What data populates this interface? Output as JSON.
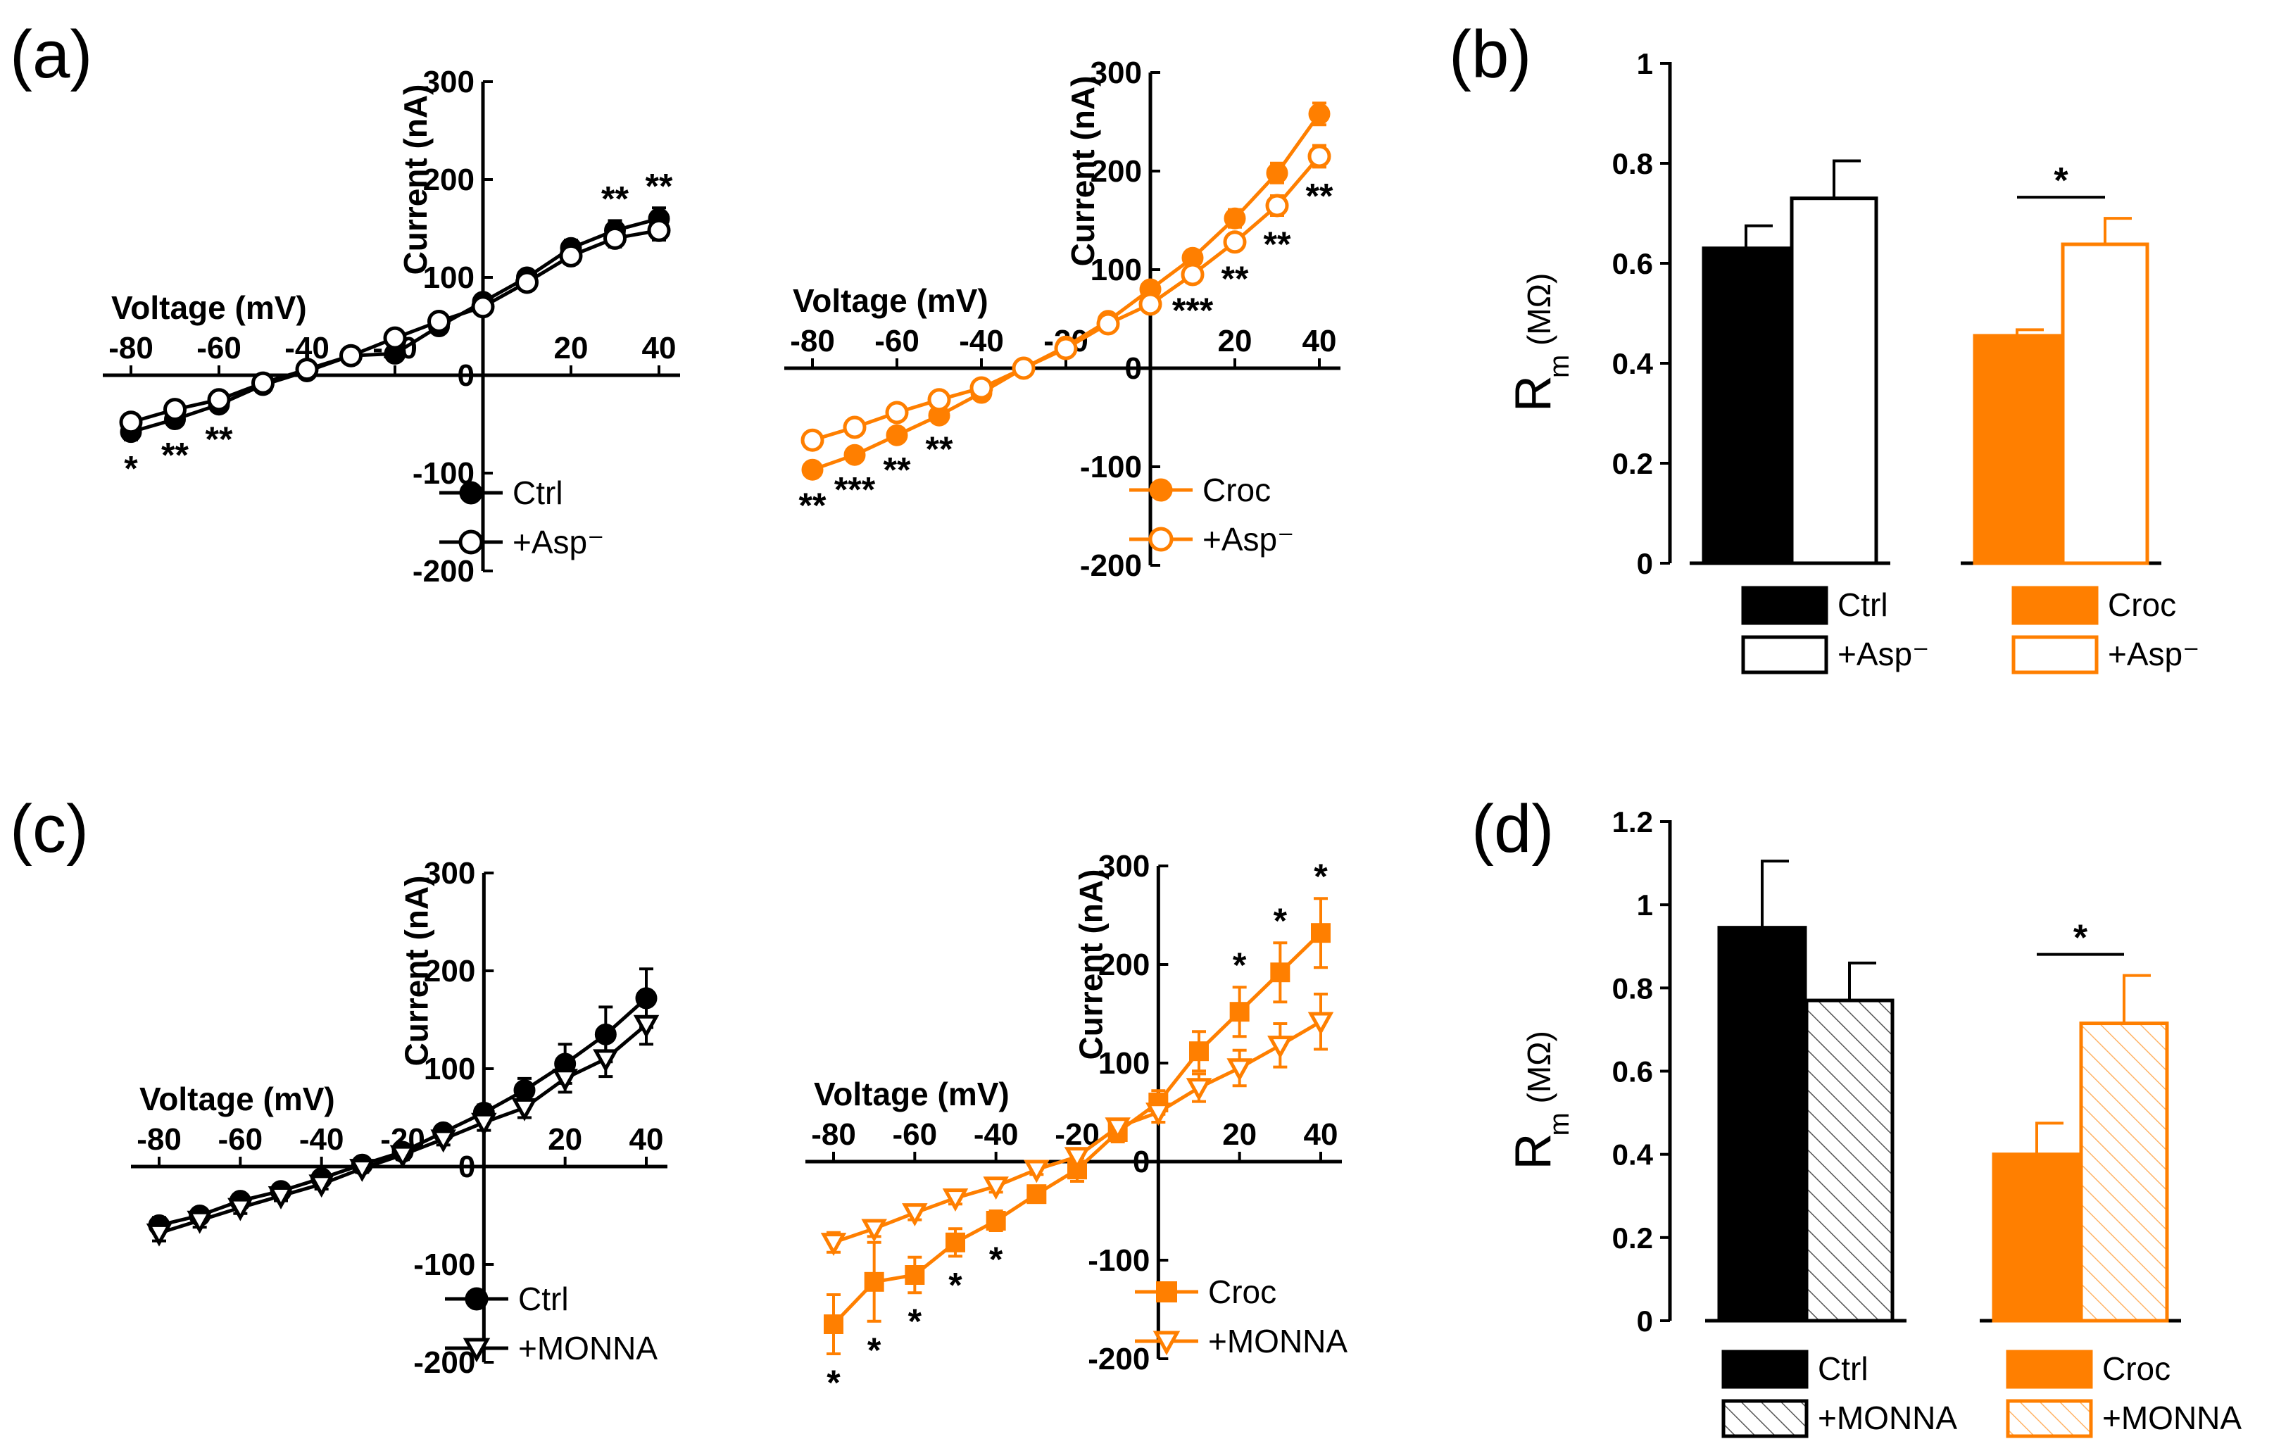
{
  "colors": {
    "black": "#000000",
    "orange": "#ff7f00",
    "white": "#ffffff"
  },
  "panel_labels": {
    "a": "(a)",
    "b": "(b)",
    "c": "(c)",
    "d": "(d)"
  },
  "chart_data": [
    {
      "id": "a1",
      "type": "line",
      "xlabel": "Voltage (mV)",
      "ylabel": "Current (nA)",
      "xlim": [
        -80,
        40
      ],
      "ylim": [
        -200,
        300
      ],
      "xticks": [
        -80,
        -60,
        -40,
        -20,
        20,
        40
      ],
      "yticks": [
        -200,
        -100,
        0,
        100,
        200,
        300
      ],
      "x": [
        -80,
        -70,
        -60,
        -50,
        -40,
        -30,
        -20,
        -10,
        0,
        10,
        20,
        30,
        40
      ],
      "series": [
        {
          "name": "Ctrl",
          "marker": "circle-filled",
          "color": "black",
          "values": [
            -58,
            -45,
            -30,
            -10,
            4,
            20,
            22,
            50,
            75,
            100,
            130,
            148,
            160
          ],
          "errors": [
            8,
            7,
            6,
            5,
            4,
            4,
            4,
            5,
            6,
            7,
            8,
            10,
            11
          ]
        },
        {
          "name": "+Asp⁻",
          "marker": "circle-open",
          "color": "black",
          "values": [
            -48,
            -35,
            -25,
            -8,
            6,
            20,
            38,
            55,
            70,
            95,
            122,
            140,
            148
          ],
          "errors": [
            7,
            6,
            6,
            5,
            4,
            4,
            4,
            5,
            6,
            6,
            8,
            9,
            10
          ]
        }
      ],
      "significance": [
        {
          "x": -80,
          "text": "*",
          "pos": "below"
        },
        {
          "x": -70,
          "text": "**",
          "pos": "below"
        },
        {
          "x": -60,
          "text": "**",
          "pos": "below"
        },
        {
          "x": 30,
          "text": "**",
          "pos": "above"
        },
        {
          "x": 40,
          "text": "**",
          "pos": "above"
        }
      ]
    },
    {
      "id": "a2",
      "type": "line",
      "xlabel": "Voltage (mV)",
      "ylabel": "Current (nA)",
      "xlim": [
        -80,
        40
      ],
      "ylim": [
        -200,
        300
      ],
      "xticks": [
        -80,
        -60,
        -40,
        -20,
        20,
        40
      ],
      "yticks": [
        -200,
        -100,
        0,
        100,
        200,
        300
      ],
      "x": [
        -80,
        -70,
        -60,
        -50,
        -40,
        -30,
        -20,
        -10,
        0,
        10,
        20,
        30,
        40
      ],
      "series": [
        {
          "name": "Croc",
          "marker": "circle-filled",
          "color": "orange",
          "values": [
            -103,
            -88,
            -68,
            -48,
            -25,
            0,
            22,
            48,
            80,
            112,
            152,
            198,
            258
          ],
          "errors": [
            7,
            6,
            6,
            5,
            5,
            4,
            4,
            5,
            6,
            7,
            9,
            10,
            11
          ]
        },
        {
          "name": "+Asp⁻",
          "marker": "circle-open",
          "color": "orange",
          "values": [
            -73,
            -60,
            -45,
            -32,
            -20,
            0,
            20,
            45,
            65,
            95,
            128,
            165,
            215
          ],
          "errors": [
            7,
            6,
            6,
            5,
            5,
            4,
            4,
            5,
            6,
            7,
            8,
            10,
            11
          ]
        }
      ],
      "significance": [
        {
          "x": -80,
          "text": "**",
          "pos": "below"
        },
        {
          "x": -70,
          "text": "***",
          "pos": "below"
        },
        {
          "x": -60,
          "text": "**",
          "pos": "below"
        },
        {
          "x": -50,
          "text": "**",
          "pos": "below"
        },
        {
          "x": 10,
          "text": "***",
          "pos": "below"
        },
        {
          "x": 20,
          "text": "**",
          "pos": "below"
        },
        {
          "x": 30,
          "text": "**",
          "pos": "below"
        },
        {
          "x": 40,
          "text": "**",
          "pos": "below"
        }
      ]
    },
    {
      "id": "b",
      "type": "bar",
      "ylabel_main": "R",
      "ylabel_sub": "m",
      "ylabel_unit": "(MΩ)",
      "ylim": [
        0,
        1
      ],
      "yticks": [
        "0",
        "0.2",
        "0.4",
        "0.6",
        "0.8",
        "1"
      ],
      "bars": [
        {
          "name": "Ctrl",
          "value": 0.63,
          "error": 0.045,
          "fill": "black",
          "style": "solid"
        },
        {
          "name": "+Asp⁻",
          "value": 0.73,
          "error": 0.075,
          "fill": "black",
          "style": "open"
        },
        {
          "name": "Croc",
          "value": 0.455,
          "error": 0.012,
          "fill": "orange",
          "style": "solid"
        },
        {
          "name": "+Asp⁻",
          "value": 0.638,
          "error": 0.052,
          "fill": "orange",
          "style": "open"
        }
      ],
      "significance": [
        {
          "between": [
            2,
            3
          ],
          "text": "*"
        }
      ],
      "legend": [
        {
          "label": "Ctrl",
          "fill": "black",
          "style": "solid"
        },
        {
          "label": "+Asp⁻",
          "fill": "black",
          "style": "open"
        },
        {
          "label": "Croc",
          "fill": "orange",
          "style": "solid"
        },
        {
          "label": "+Asp⁻",
          "fill": "orange",
          "style": "open"
        }
      ]
    },
    {
      "id": "c1",
      "type": "line",
      "xlabel": "Voltage (mV)",
      "ylabel": "Current (nA)",
      "xlim": [
        -80,
        40
      ],
      "ylim": [
        -200,
        300
      ],
      "xticks": [
        -80,
        -60,
        -40,
        -20,
        20,
        40
      ],
      "yticks": [
        -200,
        -100,
        0,
        100,
        200,
        300
      ],
      "x": [
        -80,
        -70,
        -60,
        -50,
        -40,
        -30,
        -20,
        -10,
        0,
        10,
        20,
        30,
        40
      ],
      "series": [
        {
          "name": "Ctrl",
          "marker": "circle-filled",
          "color": "black",
          "values": [
            -60,
            -50,
            -35,
            -25,
            -12,
            2,
            15,
            35,
            55,
            78,
            105,
            135,
            172
          ],
          "errors": [
            8,
            7,
            6,
            5,
            5,
            4,
            5,
            6,
            8,
            12,
            20,
            28,
            30
          ]
        },
        {
          "name": "+MONNA",
          "marker": "triangle-open",
          "color": "black",
          "values": [
            -68,
            -55,
            -42,
            -30,
            -18,
            -2,
            12,
            28,
            45,
            60,
            90,
            110,
            145
          ],
          "errors": [
            8,
            7,
            6,
            5,
            5,
            4,
            5,
            6,
            8,
            10,
            14,
            18,
            20
          ]
        }
      ],
      "significance": []
    },
    {
      "id": "c2",
      "type": "line",
      "xlabel": "Voltage (mV)",
      "ylabel": "Current (nA)",
      "xlim": [
        -80,
        40
      ],
      "ylim": [
        -200,
        300
      ],
      "xticks": [
        -80,
        -60,
        -40,
        -20,
        20,
        40
      ],
      "yticks": [
        -200,
        -100,
        0,
        100,
        200,
        300
      ],
      "x": [
        -80,
        -70,
        -60,
        -50,
        -40,
        -30,
        -20,
        -10,
        0,
        10,
        20,
        30,
        40
      ],
      "series": [
        {
          "name": "Croc",
          "marker": "square-filled",
          "color": "orange",
          "values": [
            -165,
            -122,
            -115,
            -82,
            -60,
            -33,
            -8,
            30,
            60,
            112,
            152,
            192,
            232
          ],
          "errors": [
            30,
            40,
            18,
            14,
            10,
            8,
            12,
            10,
            12,
            20,
            25,
            30,
            35
          ]
        },
        {
          "name": "+MONNA",
          "marker": "triangle-open",
          "color": "orange",
          "values": [
            -82,
            -68,
            -52,
            -37,
            -25,
            -8,
            5,
            35,
            50,
            75,
            95,
            118,
            142
          ],
          "errors": [
            10,
            8,
            7,
            6,
            6,
            5,
            6,
            8,
            10,
            14,
            18,
            22,
            28
          ]
        }
      ],
      "significance": [
        {
          "x": -80,
          "text": "*",
          "pos": "below"
        },
        {
          "x": -70,
          "text": "*",
          "pos": "below"
        },
        {
          "x": -60,
          "text": "*",
          "pos": "below"
        },
        {
          "x": -50,
          "text": "*",
          "pos": "below"
        },
        {
          "x": -40,
          "text": "*",
          "pos": "below"
        },
        {
          "x": 20,
          "text": "*",
          "pos": "above"
        },
        {
          "x": 30,
          "text": "*",
          "pos": "above"
        },
        {
          "x": 40,
          "text": "*",
          "pos": "above"
        }
      ]
    },
    {
      "id": "d",
      "type": "bar",
      "ylabel_main": "R",
      "ylabel_sub": "m",
      "ylabel_unit": "(MΩ)",
      "ylim": [
        0,
        1.2
      ],
      "yticks": [
        "0",
        "0.2",
        "0.4",
        "0.6",
        "0.8",
        "1",
        "1.2"
      ],
      "bars": [
        {
          "name": "Ctrl",
          "value": 0.945,
          "error": 0.16,
          "fill": "black",
          "style": "solid"
        },
        {
          "name": "+MONNA",
          "value": 0.77,
          "error": 0.09,
          "fill": "black",
          "style": "hatched"
        },
        {
          "name": "Croc",
          "value": 0.4,
          "error": 0.075,
          "fill": "orange",
          "style": "solid"
        },
        {
          "name": "+MONNA",
          "value": 0.715,
          "error": 0.115,
          "fill": "orange",
          "style": "hatched"
        }
      ],
      "significance": [
        {
          "between": [
            2,
            3
          ],
          "text": "*"
        }
      ],
      "legend": [
        {
          "label": "Ctrl",
          "fill": "black",
          "style": "solid"
        },
        {
          "label": "+MONNA",
          "fill": "black",
          "style": "hatched"
        },
        {
          "label": "Croc",
          "fill": "orange",
          "style": "solid"
        },
        {
          "label": "+MONNA",
          "fill": "orange",
          "style": "hatched"
        }
      ]
    }
  ]
}
